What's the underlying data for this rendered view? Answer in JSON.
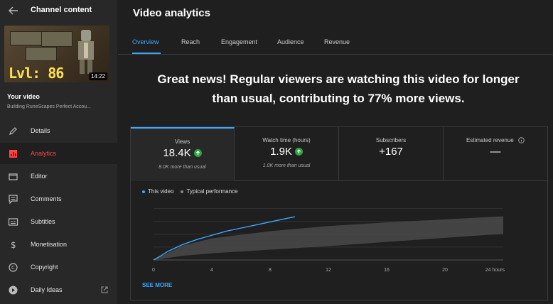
{
  "sidebar": {
    "title": "Channel content",
    "thumbnail": {
      "duration": "14:22",
      "level_text": "Lvl: 86"
    },
    "your_video_label": "Your video",
    "video_title": "Building RuneScapes Perfect Accou...",
    "items": [
      {
        "label": "Details",
        "icon": "pencil-icon"
      },
      {
        "label": "Analytics",
        "icon": "analytics-icon",
        "active": true
      },
      {
        "label": "Editor",
        "icon": "clapperboard-icon"
      },
      {
        "label": "Comments",
        "icon": "comments-icon"
      },
      {
        "label": "Subtitles",
        "icon": "subtitles-icon"
      },
      {
        "label": "Monetisation",
        "icon": "dollar-icon"
      },
      {
        "label": "Copyright",
        "icon": "copyright-icon"
      },
      {
        "label": "Daily Ideas",
        "icon": "ideas-icon"
      }
    ]
  },
  "main": {
    "title": "Video analytics",
    "tabs": [
      {
        "label": "Overview",
        "active": true
      },
      {
        "label": "Reach"
      },
      {
        "label": "Engagement"
      },
      {
        "label": "Audience"
      },
      {
        "label": "Revenue"
      }
    ],
    "headline_line1": "Great news! Regular viewers are watching this video for longer",
    "headline_line2": "than usual, contributing to 77% more views.",
    "metrics": [
      {
        "label": "Views",
        "value": "18.4K",
        "sub": "8.0K more than usual",
        "trend": "up"
      },
      {
        "label": "Watch time (hours)",
        "value": "1.9K",
        "sub": "1.0K more than usual",
        "trend": "up"
      },
      {
        "label": "Subscribers",
        "value": "+167",
        "sub": ""
      },
      {
        "label": "Estimated revenue",
        "value": "—",
        "sub": ""
      }
    ],
    "see_more": "SEE MORE"
  },
  "colors": {
    "accent": "#3ea6ff",
    "active_nav": "#ff4444",
    "trend_up": "#2ba640",
    "band": "#4a4a4a"
  },
  "chart_data": {
    "type": "line",
    "legend": [
      "This video",
      "Typical performance"
    ],
    "x_ticks": [
      "0",
      "4",
      "8",
      "12",
      "16",
      "20",
      "24 hours"
    ],
    "xlim": [
      0,
      24
    ],
    "series": [
      {
        "name": "This video",
        "x": [
          0,
          0.5,
          1,
          2,
          3,
          4,
          5,
          6,
          7,
          8,
          9,
          9.7
        ],
        "y": [
          0,
          0.08,
          0.17,
          0.3,
          0.4,
          0.48,
          0.56,
          0.62,
          0.68,
          0.74,
          0.8,
          0.84
        ]
      }
    ],
    "typical_band": {
      "x": [
        0,
        2,
        4,
        8,
        12,
        16,
        20,
        24
      ],
      "low": [
        0,
        0.08,
        0.13,
        0.2,
        0.27,
        0.35,
        0.43,
        0.51
      ],
      "high": [
        0,
        0.28,
        0.42,
        0.56,
        0.66,
        0.73,
        0.79,
        0.85
      ]
    },
    "ylim": [
      0,
      1.05
    ],
    "grid": true
  }
}
